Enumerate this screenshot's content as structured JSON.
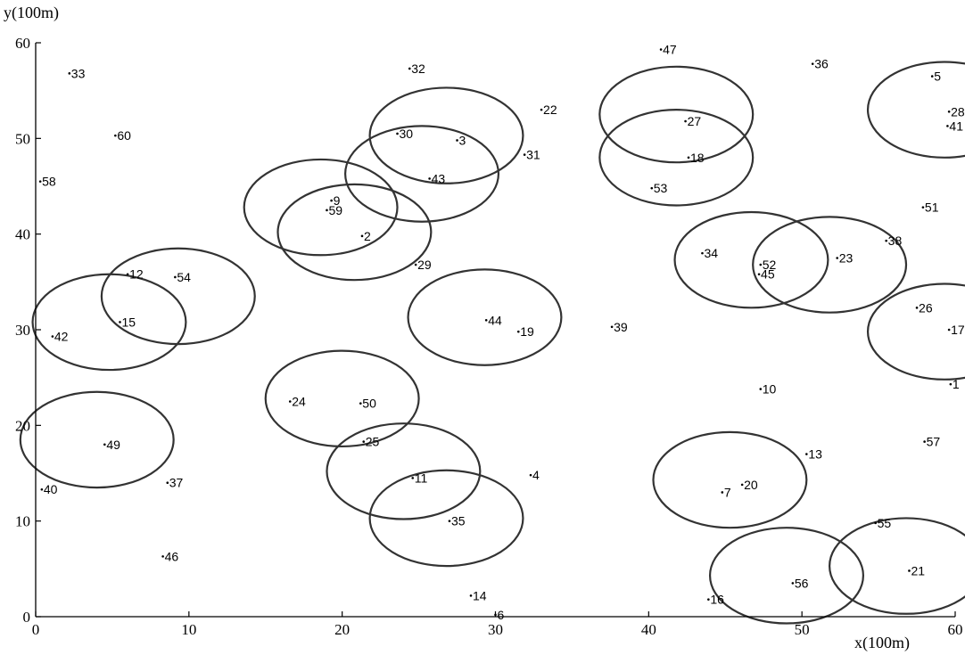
{
  "chart_data": {
    "type": "scatter",
    "xlabel": "x(100m)",
    "ylabel": "y(100m)",
    "xlim": [
      0,
      60
    ],
    "ylim": [
      0,
      60
    ],
    "xticks": [
      0,
      10,
      20,
      30,
      40,
      50,
      60
    ],
    "yticks": [
      0,
      10,
      20,
      30,
      40,
      50,
      60
    ],
    "points": [
      {
        "label": "1",
        "x": 59.7,
        "y": 24.3
      },
      {
        "label": "2",
        "x": 21.3,
        "y": 39.8
      },
      {
        "label": "3",
        "x": 27.5,
        "y": 49.8
      },
      {
        "label": "4",
        "x": 32.3,
        "y": 14.8
      },
      {
        "label": "5",
        "x": 58.5,
        "y": 56.5
      },
      {
        "label": "6",
        "x": 30.0,
        "y": 0.2
      },
      {
        "label": "7",
        "x": 44.8,
        "y": 13.0
      },
      {
        "label": "9",
        "x": 19.3,
        "y": 43.5
      },
      {
        "label": "10",
        "x": 47.3,
        "y": 23.8
      },
      {
        "label": "11",
        "x": 24.6,
        "y": 14.5
      },
      {
        "label": "12",
        "x": 6.0,
        "y": 35.8
      },
      {
        "label": "13",
        "x": 50.3,
        "y": 17.0
      },
      {
        "label": "14",
        "x": 28.4,
        "y": 2.2
      },
      {
        "label": "15",
        "x": 5.5,
        "y": 30.8
      },
      {
        "label": "16",
        "x": 43.9,
        "y": 1.8
      },
      {
        "label": "17",
        "x": 59.6,
        "y": 30.0
      },
      {
        "label": "18",
        "x": 42.6,
        "y": 48.0
      },
      {
        "label": "19",
        "x": 31.5,
        "y": 29.8
      },
      {
        "label": "20",
        "x": 46.1,
        "y": 13.8
      },
      {
        "label": "21",
        "x": 57.0,
        "y": 4.8
      },
      {
        "label": "22",
        "x": 33.0,
        "y": 53.0
      },
      {
        "label": "23",
        "x": 52.3,
        "y": 37.5
      },
      {
        "label": "24",
        "x": 16.6,
        "y": 22.5
      },
      {
        "label": "25",
        "x": 21.4,
        "y": 18.3
      },
      {
        "label": "26",
        "x": 57.5,
        "y": 32.3
      },
      {
        "label": "27",
        "x": 42.4,
        "y": 51.8
      },
      {
        "label": "28",
        "x": 59.6,
        "y": 52.8
      },
      {
        "label": "29",
        "x": 24.8,
        "y": 36.8
      },
      {
        "label": "30",
        "x": 23.6,
        "y": 50.5
      },
      {
        "label": "31",
        "x": 31.9,
        "y": 48.3
      },
      {
        "label": "32",
        "x": 24.4,
        "y": 57.3
      },
      {
        "label": "33",
        "x": 2.2,
        "y": 56.8
      },
      {
        "label": "34",
        "x": 43.5,
        "y": 38.0
      },
      {
        "label": "35",
        "x": 27.0,
        "y": 10.0
      },
      {
        "label": "36",
        "x": 50.7,
        "y": 57.8
      },
      {
        "label": "37",
        "x": 8.6,
        "y": 14.0
      },
      {
        "label": "38",
        "x": 55.5,
        "y": 39.3
      },
      {
        "label": "39",
        "x": 37.6,
        "y": 30.3
      },
      {
        "label": "40",
        "x": 0.4,
        "y": 13.3
      },
      {
        "label": "41",
        "x": 59.5,
        "y": 51.3
      },
      {
        "label": "42",
        "x": 1.1,
        "y": 29.3
      },
      {
        "label": "43",
        "x": 25.7,
        "y": 45.8
      },
      {
        "label": "44",
        "x": 29.4,
        "y": 31.0
      },
      {
        "label": "45",
        "x": 47.2,
        "y": 35.8
      },
      {
        "label": "46",
        "x": 8.3,
        "y": 6.3
      },
      {
        "label": "47",
        "x": 40.8,
        "y": 59.3
      },
      {
        "label": "49",
        "x": 4.5,
        "y": 18.0
      },
      {
        "label": "50",
        "x": 21.2,
        "y": 22.3
      },
      {
        "label": "51",
        "x": 57.9,
        "y": 42.8
      },
      {
        "label": "52",
        "x": 47.3,
        "y": 36.8
      },
      {
        "label": "53",
        "x": 40.2,
        "y": 44.8
      },
      {
        "label": "54",
        "x": 9.1,
        "y": 35.5
      },
      {
        "label": "55",
        "x": 54.8,
        "y": 9.8
      },
      {
        "label": "56",
        "x": 49.4,
        "y": 3.5
      },
      {
        "label": "57",
        "x": 58.0,
        "y": 18.3
      },
      {
        "label": "58",
        "x": 0.3,
        "y": 45.5
      },
      {
        "label": "59",
        "x": 19.0,
        "y": 42.5
      },
      {
        "label": "60",
        "x": 5.2,
        "y": 50.3
      }
    ],
    "circles": [
      {
        "cx": 26.8,
        "cy": 50.3,
        "r": 5.0
      },
      {
        "cx": 25.2,
        "cy": 46.3,
        "r": 5.0
      },
      {
        "cx": 18.6,
        "cy": 42.8,
        "r": 5.0
      },
      {
        "cx": 20.8,
        "cy": 40.2,
        "r": 5.0
      },
      {
        "cx": 41.8,
        "cy": 52.5,
        "r": 5.0
      },
      {
        "cx": 41.8,
        "cy": 48.0,
        "r": 5.0
      },
      {
        "cx": 59.3,
        "cy": 53.0,
        "r": 5.0
      },
      {
        "cx": 46.7,
        "cy": 37.3,
        "r": 5.0
      },
      {
        "cx": 51.8,
        "cy": 36.8,
        "r": 5.0
      },
      {
        "cx": 59.3,
        "cy": 29.8,
        "r": 5.0
      },
      {
        "cx": 9.3,
        "cy": 33.5,
        "r": 5.0
      },
      {
        "cx": 4.8,
        "cy": 30.8,
        "r": 5.0
      },
      {
        "cx": 29.3,
        "cy": 31.3,
        "r": 5.0
      },
      {
        "cx": 20.0,
        "cy": 22.8,
        "r": 5.0
      },
      {
        "cx": 4.0,
        "cy": 18.5,
        "r": 5.0
      },
      {
        "cx": 24.0,
        "cy": 15.2,
        "r": 5.0
      },
      {
        "cx": 26.8,
        "cy": 10.3,
        "r": 5.0
      },
      {
        "cx": 45.3,
        "cy": 14.3,
        "r": 5.0
      },
      {
        "cx": 49.0,
        "cy": 4.3,
        "r": 5.0
      },
      {
        "cx": 56.8,
        "cy": 5.3,
        "r": 5.0
      }
    ]
  }
}
